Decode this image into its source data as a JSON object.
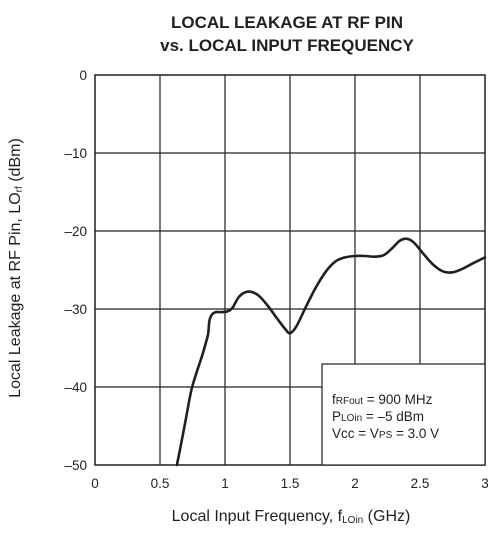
{
  "chart_data": {
    "type": "line",
    "title_lines": [
      "LOCAL LEAKAGE AT RF PIN",
      "vs. LOCAL INPUT FREQUENCY"
    ],
    "xlabel": {
      "main": "Local Input Frequency, f",
      "sub": "LOin",
      "unit": " (GHz)"
    },
    "ylabel": {
      "main": "Local Leakage at RF Pin, LO",
      "sub": "rf",
      "unit": " (dBm)"
    },
    "xlim": [
      0,
      3
    ],
    "ylim": [
      -50,
      0
    ],
    "x_ticks": [
      0,
      0.5,
      1,
      1.5,
      2,
      2.5,
      3
    ],
    "x_tick_labels": [
      "0",
      "0.5",
      "1",
      "1.5",
      "2",
      "2.5",
      "3"
    ],
    "y_ticks": [
      0,
      -10,
      -20,
      -30,
      -40,
      -50
    ],
    "y_tick_labels": [
      "0",
      "–10",
      "–20",
      "–30",
      "–40",
      "–50"
    ],
    "grid": true,
    "legend_position": "bottom-right",
    "conditions": [
      {
        "pre": "f",
        "sub": "RFout",
        "post": " = 900 MHz"
      },
      {
        "pre": "P",
        "sub": "LOin",
        "post": " = –5 dBm"
      },
      {
        "pre": "Vcc = V",
        "sub": "PS",
        "post": " = 3.0 V"
      }
    ],
    "series": [
      {
        "color": "#231f20",
        "x": [
          0.63,
          0.66,
          0.7,
          0.74,
          0.78,
          0.82,
          0.85,
          0.87,
          0.88,
          0.9,
          0.93,
          0.97,
          1.02,
          1.06,
          1.1,
          1.15,
          1.2,
          1.26,
          1.33,
          1.4,
          1.46,
          1.5,
          1.55,
          1.62,
          1.7,
          1.78,
          1.85,
          1.92,
          2.0,
          2.08,
          2.15,
          2.22,
          2.28,
          2.34,
          2.38,
          2.42,
          2.46,
          2.52,
          2.6,
          2.68,
          2.75,
          2.82,
          2.9,
          2.96,
          3.0
        ],
        "y": [
          -50,
          -47.5,
          -44,
          -40.5,
          -38.2,
          -36.2,
          -34.5,
          -33.2,
          -31.5,
          -30.7,
          -30.4,
          -30.4,
          -30.3,
          -29.8,
          -28.6,
          -27.9,
          -27.8,
          -28.3,
          -29.6,
          -31.2,
          -32.5,
          -33.1,
          -32.2,
          -29.8,
          -27.2,
          -25.1,
          -23.9,
          -23.4,
          -23.2,
          -23.2,
          -23.3,
          -23.1,
          -22.3,
          -21.3,
          -21.0,
          -21.1,
          -21.6,
          -22.8,
          -24.3,
          -25.2,
          -25.3,
          -24.9,
          -24.2,
          -23.7,
          -23.4
        ]
      }
    ]
  }
}
